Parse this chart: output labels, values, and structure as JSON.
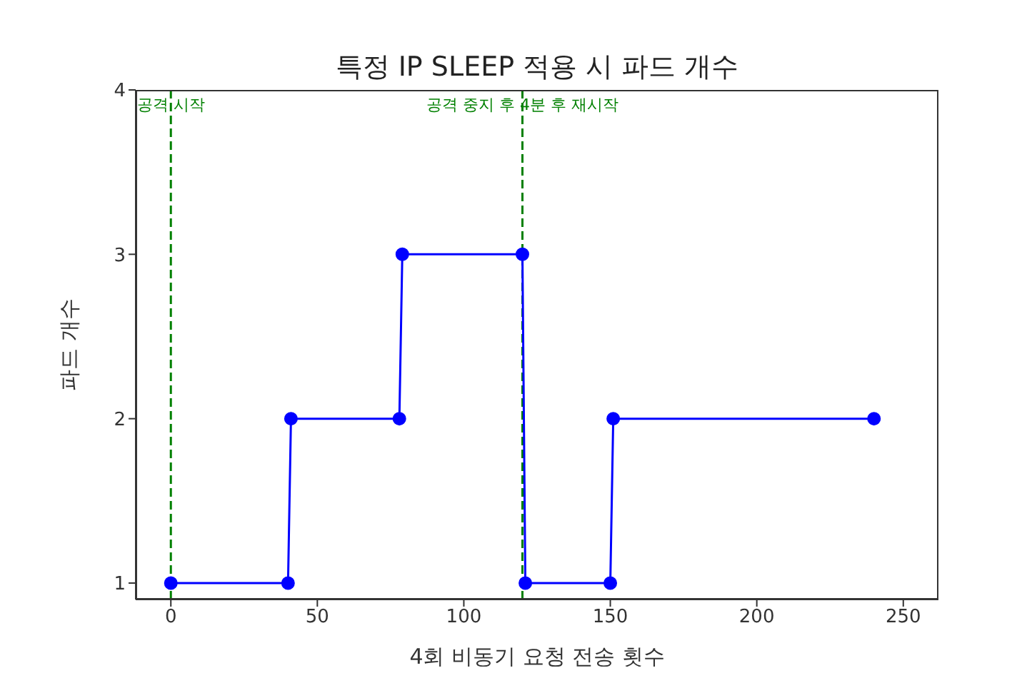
{
  "chart_data": {
    "type": "line",
    "title": "특정 IP SLEEP 적용 시 파드 개수",
    "xlabel": "4회 비동기 요청 전송 횟수",
    "ylabel": "파드 개수",
    "x": [
      0,
      40,
      41,
      78,
      79,
      120,
      121,
      150,
      151,
      240
    ],
    "series": [
      {
        "color": "#0000ff",
        "values": [
          1,
          1,
          2,
          2,
          3,
          3,
          1,
          1,
          2,
          2
        ]
      }
    ],
    "marker": "circle",
    "line_style": "solid",
    "grid": false,
    "legend": false,
    "xlim": [
      -12,
      262
    ],
    "xticks": [
      0,
      50,
      100,
      150,
      200,
      250
    ],
    "ylim": [
      0.9,
      4
    ],
    "yticks": [
      1,
      2,
      3,
      4
    ],
    "ref_lines": [
      {
        "axis": "x",
        "value": 0,
        "label": "공격 시작",
        "color": "#008000",
        "line_style": "dashed"
      },
      {
        "axis": "x",
        "value": 120,
        "label": "공격 중지 후 4분 후 재시작",
        "color": "#008000",
        "line_style": "dashed"
      }
    ]
  }
}
